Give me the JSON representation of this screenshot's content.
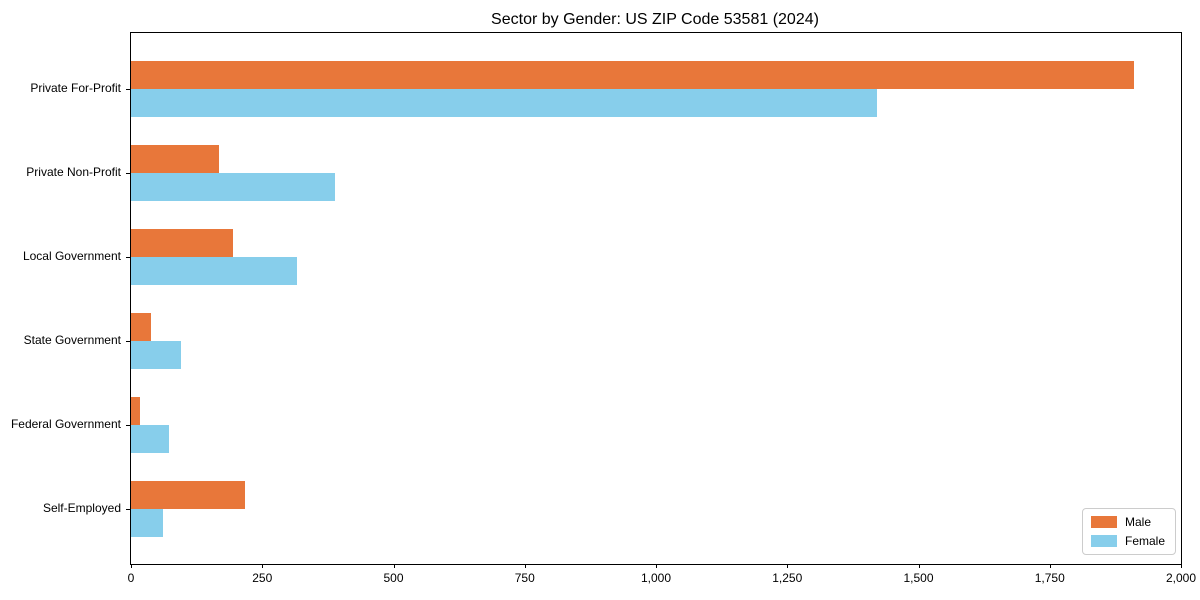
{
  "title": "Sector by Gender: US ZIP Code 53581 (2024)",
  "colors": {
    "male": "#e8773a",
    "female": "#87ceeb",
    "axis": "#000000",
    "legend_border": "#cccccc",
    "background": "#ffffff"
  },
  "chart_data": {
    "type": "bar",
    "orientation": "horizontal",
    "title": "Sector by Gender: US ZIP Code 53581 (2024)",
    "xlabel": "",
    "ylabel": "",
    "categories": [
      "Private For-Profit",
      "Private Non-Profit",
      "Local Government",
      "State Government",
      "Federal Government",
      "Self-Employed"
    ],
    "series": [
      {
        "name": "Male",
        "color": "#e8773a",
        "values": [
          1910,
          168,
          195,
          38,
          17,
          218
        ]
      },
      {
        "name": "Female",
        "color": "#87ceeb",
        "values": [
          1420,
          388,
          317,
          95,
          73,
          61
        ]
      }
    ],
    "xlim": [
      0,
      2000
    ],
    "xticks": [
      0,
      250,
      500,
      750,
      1000,
      1250,
      1500,
      1750,
      2000
    ],
    "xtick_labels": [
      "0",
      "250",
      "500",
      "750",
      "1,000",
      "1,250",
      "1,500",
      "1,750",
      "2,000"
    ],
    "grid": false,
    "legend": {
      "position": "lower right",
      "entries": [
        "Male",
        "Female"
      ]
    }
  }
}
